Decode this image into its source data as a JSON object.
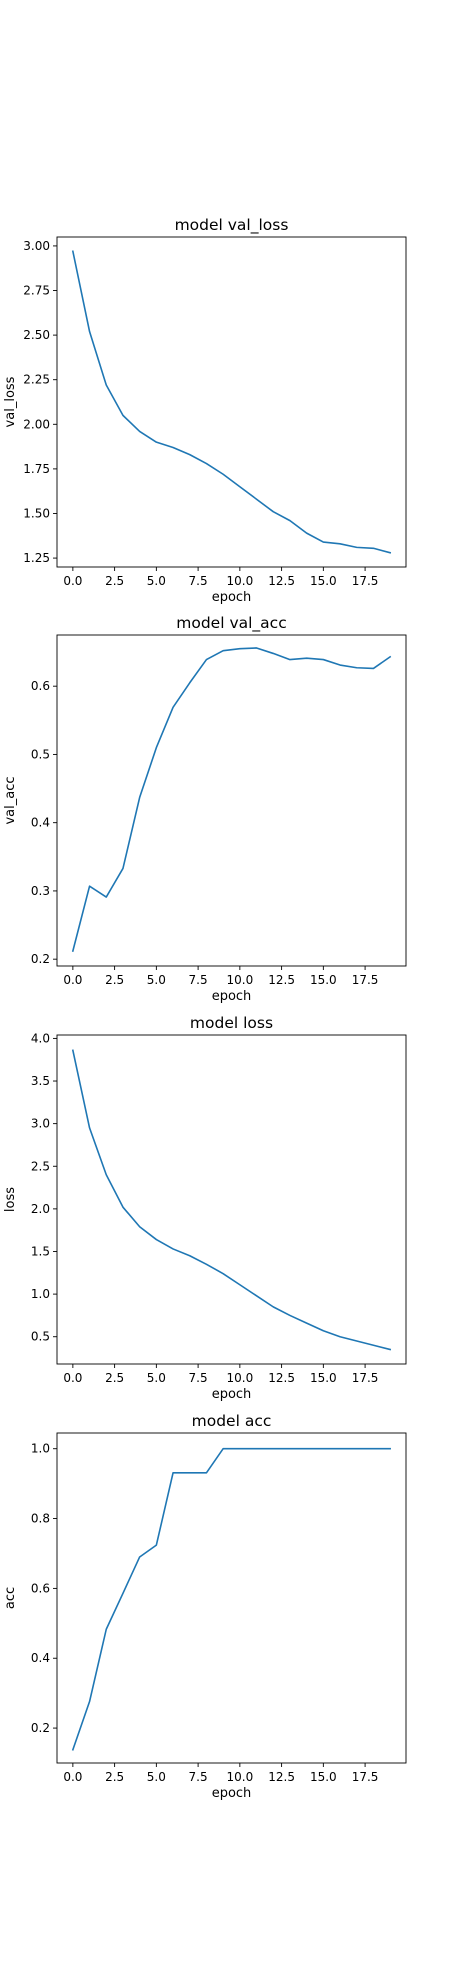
{
  "style": {
    "line_color": "#1f77b4"
  },
  "chart_data": [
    {
      "type": "line",
      "title": "model val_loss",
      "xlabel": "epoch",
      "ylabel": "val_loss",
      "xlim": [
        -0.95,
        19.95
      ],
      "ylim": [
        1.2,
        3.05
      ],
      "grid": false,
      "xticks": [
        0.0,
        2.5,
        5.0,
        7.5,
        10.0,
        12.5,
        15.0,
        17.5
      ],
      "xtick_labels": [
        "0.0",
        "2.5",
        "5.0",
        "7.5",
        "10.0",
        "12.5",
        "15.0",
        "17.5"
      ],
      "yticks": [
        1.25,
        1.5,
        1.75,
        2.0,
        2.25,
        2.5,
        2.75,
        3.0
      ],
      "ytick_labels": [
        "1.25",
        "1.50",
        "1.75",
        "2.00",
        "2.25",
        "2.50",
        "2.75",
        "3.00"
      ],
      "series": [
        {
          "x": [
            0,
            1,
            2,
            3,
            4,
            5,
            6,
            7,
            8,
            9,
            10,
            11,
            12,
            13,
            14,
            15,
            16,
            17,
            18,
            19
          ],
          "y": [
            2.97,
            2.52,
            2.22,
            2.05,
            1.96,
            1.9,
            1.87,
            1.83,
            1.78,
            1.72,
            1.65,
            1.58,
            1.51,
            1.46,
            1.39,
            1.34,
            1.33,
            1.31,
            1.305,
            1.28
          ]
        }
      ]
    },
    {
      "type": "line",
      "title": "model val_acc",
      "xlabel": "epoch",
      "ylabel": "val_acc",
      "xlim": [
        -0.95,
        19.95
      ],
      "ylim": [
        0.19,
        0.675
      ],
      "grid": false,
      "xticks": [
        0.0,
        2.5,
        5.0,
        7.5,
        10.0,
        12.5,
        15.0,
        17.5
      ],
      "xtick_labels": [
        "0.0",
        "2.5",
        "5.0",
        "7.5",
        "10.0",
        "12.5",
        "15.0",
        "17.5"
      ],
      "yticks": [
        0.2,
        0.3,
        0.4,
        0.5,
        0.6
      ],
      "ytick_labels": [
        "0.2",
        "0.3",
        "0.4",
        "0.5",
        "0.6"
      ],
      "series": [
        {
          "x": [
            0,
            1,
            2,
            3,
            4,
            5,
            6,
            7,
            8,
            9,
            10,
            11,
            12,
            13,
            14,
            15,
            16,
            17,
            18,
            19
          ],
          "y": [
            0.212,
            0.307,
            0.291,
            0.333,
            0.437,
            0.51,
            0.569,
            0.605,
            0.639,
            0.652,
            0.655,
            0.656,
            0.648,
            0.639,
            0.641,
            0.639,
            0.631,
            0.627,
            0.626,
            0.643
          ]
        }
      ]
    },
    {
      "type": "line",
      "title": "model loss",
      "xlabel": "epoch",
      "ylabel": "loss",
      "xlim": [
        -0.95,
        19.95
      ],
      "ylim": [
        0.18,
        4.04
      ],
      "grid": false,
      "xticks": [
        0.0,
        2.5,
        5.0,
        7.5,
        10.0,
        12.5,
        15.0,
        17.5
      ],
      "xtick_labels": [
        "0.0",
        "2.5",
        "5.0",
        "7.5",
        "10.0",
        "12.5",
        "15.0",
        "17.5"
      ],
      "yticks": [
        0.5,
        1.0,
        1.5,
        2.0,
        2.5,
        3.0,
        3.5,
        4.0
      ],
      "ytick_labels": [
        "0.5",
        "1.0",
        "1.5",
        "2.0",
        "2.5",
        "3.0",
        "3.5",
        "4.0"
      ],
      "series": [
        {
          "x": [
            0,
            1,
            2,
            3,
            4,
            5,
            6,
            7,
            8,
            9,
            10,
            11,
            12,
            13,
            14,
            15,
            16,
            17,
            18,
            19
          ],
          "y": [
            3.86,
            2.95,
            2.4,
            2.02,
            1.79,
            1.64,
            1.53,
            1.45,
            1.35,
            1.24,
            1.11,
            0.98,
            0.85,
            0.75,
            0.66,
            0.57,
            0.5,
            0.45,
            0.4,
            0.35
          ]
        }
      ]
    },
    {
      "type": "line",
      "title": "model acc",
      "xlabel": "epoch",
      "ylabel": "acc",
      "xlim": [
        -0.95,
        19.95
      ],
      "ylim": [
        0.1,
        1.045
      ],
      "grid": false,
      "xticks": [
        0.0,
        2.5,
        5.0,
        7.5,
        10.0,
        12.5,
        15.0,
        17.5
      ],
      "xtick_labels": [
        "0.0",
        "2.5",
        "5.0",
        "7.5",
        "10.0",
        "12.5",
        "15.0",
        "17.5"
      ],
      "yticks": [
        0.2,
        0.4,
        0.6,
        0.8,
        1.0
      ],
      "ytick_labels": [
        "0.2",
        "0.4",
        "0.6",
        "0.8",
        "1.0"
      ],
      "series": [
        {
          "x": [
            0,
            1,
            2,
            3,
            4,
            5,
            6,
            7,
            8,
            9,
            10,
            11,
            12,
            13,
            14,
            15,
            16,
            17,
            18,
            19
          ],
          "y": [
            0.138,
            0.276,
            0.483,
            0.586,
            0.69,
            0.724,
            0.931,
            0.931,
            0.931,
            1.0,
            1.0,
            1.0,
            1.0,
            1.0,
            1.0,
            1.0,
            1.0,
            1.0,
            1.0,
            1.0
          ]
        }
      ]
    }
  ]
}
